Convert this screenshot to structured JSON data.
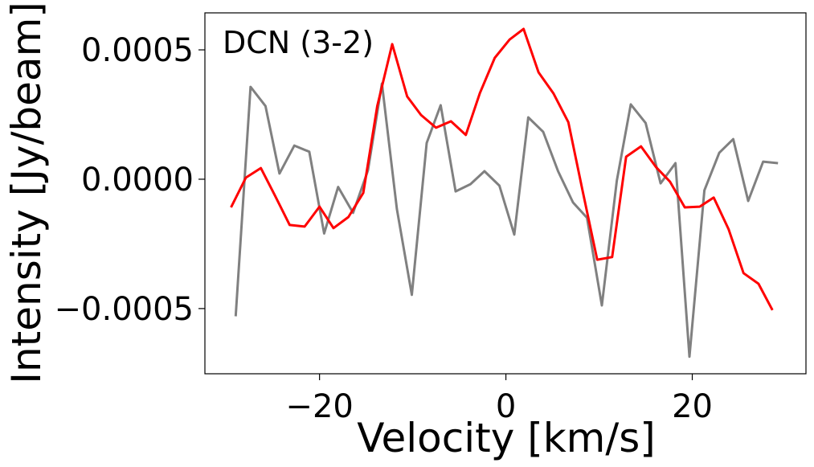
{
  "chart_data": {
    "type": "line",
    "annotation": "DCN (3-2)",
    "x_label": "Velocity [km/s]",
    "y_label": "Intensity [Jy/beam]",
    "xlim": [
      -32.3,
      32.2
    ],
    "ylim": [
      -0.000752,
      0.000643
    ],
    "xticks": [
      {
        "value": -20,
        "label": "−20"
      },
      0,
      20
    ],
    "yticks": [
      {
        "value": -0.0005,
        "label": "−0.0005"
      },
      {
        "value": 0,
        "label": "0.0000"
      },
      0.0005
    ],
    "series": [
      {
        "color": "#808080",
        "x": [
          -29.0,
          -27.4,
          -25.8,
          -24.3,
          -22.7,
          -21.1,
          -19.5,
          -18.0,
          -16.4,
          -14.8,
          -13.3,
          -11.7,
          -10.1,
          -8.5,
          -7.0,
          -5.4,
          -3.8,
          -2.3,
          -0.7,
          0.9,
          2.4,
          4.0,
          5.6,
          7.2,
          8.7,
          10.3,
          11.9,
          13.4,
          15.0,
          16.6,
          18.2,
          19.7,
          21.3,
          22.9,
          24.4,
          26.0,
          27.6,
          29.2
        ],
        "values": [
          -0.00053,
          0.000357,
          0.000283,
          2.2e-05,
          0.00013,
          0.000106,
          -0.00021,
          -3e-05,
          -0.00013,
          3.4e-05,
          0.00037,
          -0.000115,
          -0.000447,
          0.00014,
          0.000286,
          -4.7e-05,
          -1.9e-05,
          3.1e-05,
          -2.5e-05,
          -0.000214,
          0.000239,
          0.000183,
          3.1e-05,
          -9e-05,
          -0.000149,
          -0.000488,
          -6e-06,
          0.000289,
          0.000217,
          -1.6e-05,
          6.2e-05,
          -0.000686,
          -4.3e-05,
          0.000102,
          0.000155,
          -8.4e-05,
          6.8e-05,
          6.2e-05
        ]
      },
      {
        "color": "#ff0000",
        "x": [
          -29.5,
          -27.9,
          -26.3,
          -24.8,
          -23.2,
          -21.6,
          -20.0,
          -18.5,
          -16.9,
          -15.3,
          -13.8,
          -12.2,
          -10.6,
          -9.1,
          -7.5,
          -5.9,
          -4.3,
          -2.8,
          -1.2,
          0.4,
          1.9,
          3.5,
          5.1,
          6.7,
          8.2,
          9.8,
          11.4,
          12.9,
          14.5,
          16.1,
          17.6,
          19.2,
          20.8,
          22.3,
          23.9,
          25.5,
          27.1,
          28.6
        ],
        "values": [
          -0.000109,
          6e-06,
          4.3e-05,
          -6.2e-05,
          -0.000177,
          -0.000183,
          -0.000106,
          -0.000189,
          -0.000146,
          -5.3e-05,
          0.000283,
          0.000522,
          0.00032,
          0.000248,
          0.000199,
          0.000224,
          0.000171,
          0.000332,
          0.000469,
          0.00054,
          0.000581,
          0.000413,
          0.000332,
          0.00022,
          -4e-05,
          -0.000311,
          -0.000301,
          8.7e-05,
          0.000127,
          4.7e-05,
          -9e-06,
          -0.000109,
          -0.000106,
          -7.1e-05,
          -0.000193,
          -0.000363,
          -0.000404,
          -0.000506
        ]
      }
    ]
  }
}
